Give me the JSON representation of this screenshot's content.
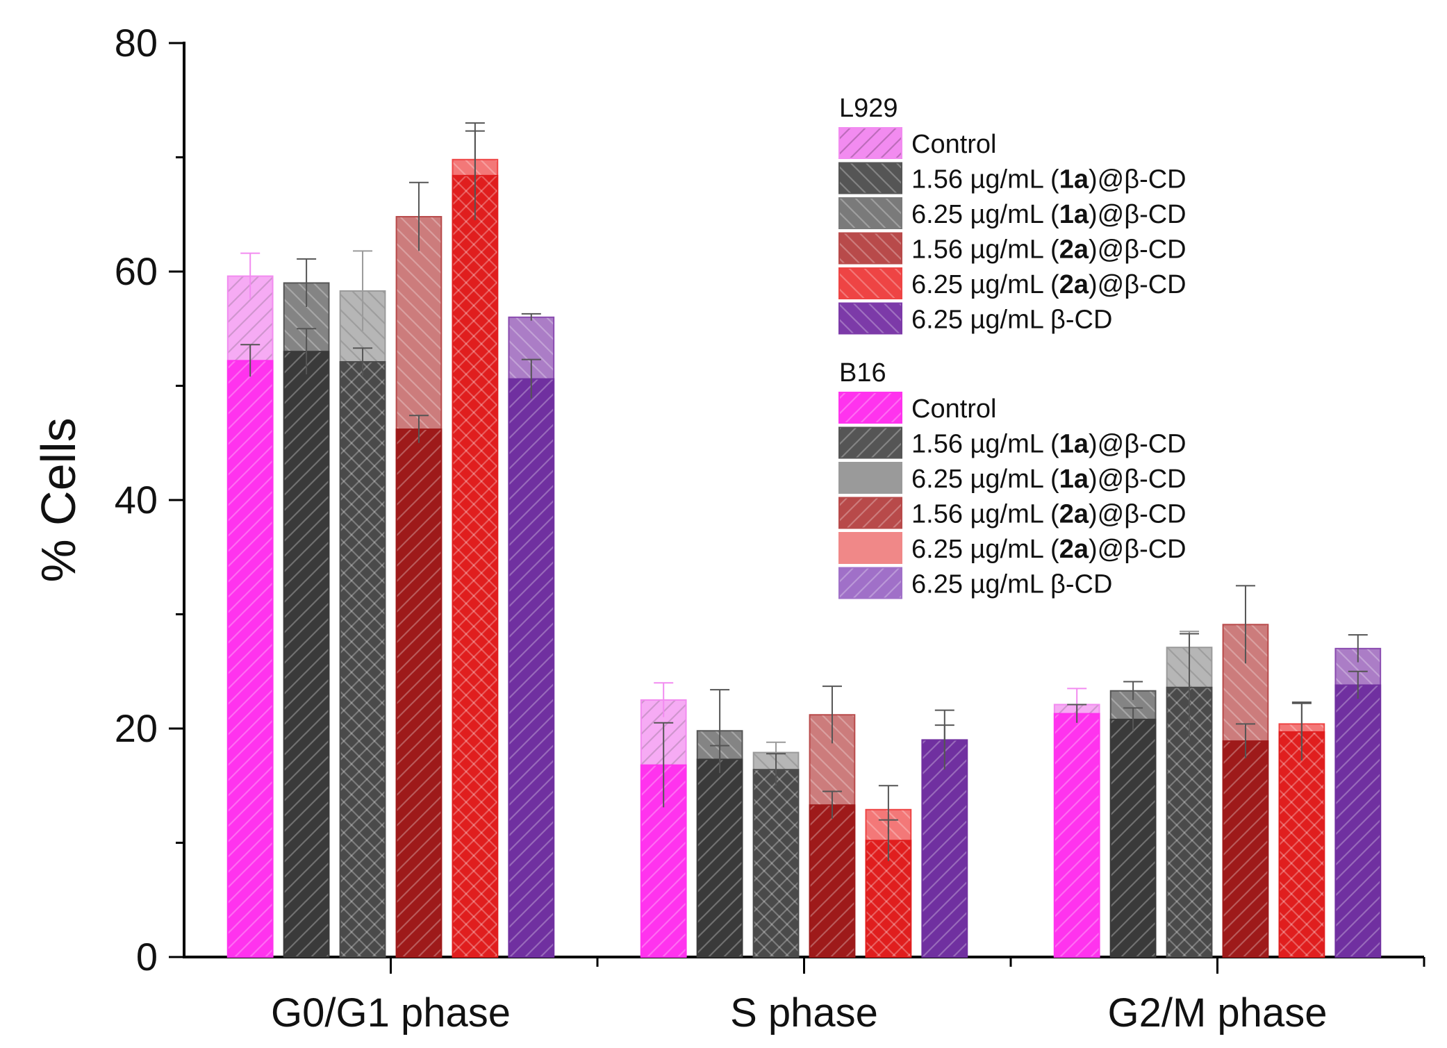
{
  "chart_data": {
    "type": "bar",
    "title": "",
    "xlabel": "",
    "ylabel": "% Cells",
    "ylim": [
      0,
      80
    ],
    "yticks": [
      0,
      20,
      40,
      60,
      80
    ],
    "grid": false,
    "legend_position": "top-right",
    "categories": [
      "G0/G1 phase",
      "S phase",
      "G2/M phase"
    ],
    "groups": [
      {
        "name": "L929",
        "series": [
          {
            "name": "Control",
            "values": [
              59.6,
              22.5,
              22.1
            ],
            "errors": [
              2.0,
              1.5,
              1.4
            ],
            "color": "#f28bf0",
            "hatch": "diag-left"
          },
          {
            "name": "1.56 µg/mL (1a)@β-CD",
            "values": [
              59.0,
              19.8,
              23.3
            ],
            "errors": [
              2.1,
              3.6,
              0.8
            ],
            "color": "#555555",
            "hatch": "diag-right"
          },
          {
            "name": "6.25 µg/mL (1a)@β-CD",
            "values": [
              58.3,
              17.9,
              27.1
            ],
            "errors": [
              3.5,
              0.9,
              1.4
            ],
            "color": "#9a9a9a",
            "hatch": "diag-right"
          },
          {
            "name": "1.56 µg/mL (2a)@β-CD",
            "values": [
              64.8,
              21.2,
              29.1
            ],
            "errors": [
              3.0,
              2.5,
              3.4
            ],
            "color": "#b84a4a",
            "hatch": "diag-right"
          },
          {
            "name": "6.25 µg/mL (2a)@β-CD",
            "values": [
              69.8,
              12.9,
              20.4
            ],
            "errors": [
              3.2,
              2.1,
              1.9
            ],
            "color": "#ee4444",
            "hatch": "diag-right"
          },
          {
            "name": "6.25 µg/mL β-CD",
            "values": [
              56.0,
              19.0,
              27.0
            ],
            "errors": [
              0.3,
              2.6,
              1.2
            ],
            "color": "#8a4bb0",
            "hatch": "diag-right"
          }
        ]
      },
      {
        "name": "B16",
        "series": [
          {
            "name": "Control",
            "values": [
              52.2,
              16.8,
              21.3
            ],
            "errors": [
              1.4,
              3.7,
              0.8
            ],
            "color": "#ff33ee",
            "hatch": "diag-left"
          },
          {
            "name": "1.56 µg/mL (1a)@β-CD",
            "values": [
              53.0,
              17.3,
              20.8
            ],
            "errors": [
              2.0,
              1.2,
              1.0
            ],
            "color": "#3a3a3a",
            "hatch": "diag-left"
          },
          {
            "name": "6.25 µg/mL (1a)@β-CD",
            "values": [
              52.1,
              16.4,
              23.6
            ],
            "errors": [
              1.2,
              1.4,
              4.7
            ],
            "color": "#4a4a4a",
            "hatch": "cross"
          },
          {
            "name": "1.56 µg/mL (2a)@β-CD",
            "values": [
              46.2,
              13.3,
              18.9
            ],
            "errors": [
              1.2,
              1.2,
              1.5
            ],
            "color": "#9e1a1a",
            "hatch": "diag-left"
          },
          {
            "name": "6.25 µg/mL (2a)@β-CD",
            "values": [
              68.4,
              10.2,
              19.7
            ],
            "errors": [
              3.9,
              1.8,
              2.5
            ],
            "color": "#e01e1e",
            "hatch": "cross"
          },
          {
            "name": "6.25 µg/mL β-CD",
            "values": [
              50.6,
              19.0,
              23.8
            ],
            "errors": [
              1.7,
              1.3,
              1.2
            ],
            "color": "#7030a0",
            "hatch": "diag-left"
          }
        ]
      }
    ],
    "legend": {
      "groups": [
        {
          "title": "L929",
          "entries": [
            {
              "parts": [
                {
                  "t": "Control",
                  "b": false
                }
              ]
            },
            {
              "parts": [
                {
                  "t": "1.56 µg/mL (",
                  "b": false
                },
                {
                  "t": "1a",
                  "b": true
                },
                {
                  "t": ")@β-CD",
                  "b": false
                }
              ]
            },
            {
              "parts": [
                {
                  "t": "6.25 µg/mL (",
                  "b": false
                },
                {
                  "t": "1a",
                  "b": true
                },
                {
                  "t": ")@β-CD",
                  "b": false
                }
              ]
            },
            {
              "parts": [
                {
                  "t": "1.56 µg/mL (",
                  "b": false
                },
                {
                  "t": "2a",
                  "b": true
                },
                {
                  "t": ")@β-CD",
                  "b": false
                }
              ]
            },
            {
              "parts": [
                {
                  "t": "6.25 µg/mL (",
                  "b": false
                },
                {
                  "t": "2a",
                  "b": true
                },
                {
                  "t": ")@β-CD",
                  "b": false
                }
              ]
            },
            {
              "parts": [
                {
                  "t": "6.25 µg/mL β-CD",
                  "b": false
                }
              ]
            }
          ],
          "swatches": [
            {
              "color": "#f28bf0",
              "hatch": "diag-left"
            },
            {
              "color": "#555555",
              "hatch": "diag-right"
            },
            {
              "color": "#7a7a7a",
              "hatch": "diag-right"
            },
            {
              "color": "#b84a4a",
              "hatch": "diag-right"
            },
            {
              "color": "#ee4444",
              "hatch": "diag-right"
            },
            {
              "color": "#7c3aa8",
              "hatch": "diag-right"
            }
          ]
        },
        {
          "title": "B16",
          "entries": [
            {
              "parts": [
                {
                  "t": "Control",
                  "b": false
                }
              ]
            },
            {
              "parts": [
                {
                  "t": "1.56 µg/mL (",
                  "b": false
                },
                {
                  "t": "1a",
                  "b": true
                },
                {
                  "t": ")@β-CD",
                  "b": false
                }
              ]
            },
            {
              "parts": [
                {
                  "t": "6.25 µg/mL (",
                  "b": false
                },
                {
                  "t": "1a",
                  "b": true
                },
                {
                  "t": ")@β-CD",
                  "b": false
                }
              ]
            },
            {
              "parts": [
                {
                  "t": "1.56 µg/mL (",
                  "b": false
                },
                {
                  "t": "2a",
                  "b": true
                },
                {
                  "t": ")@β-CD",
                  "b": false
                }
              ]
            },
            {
              "parts": [
                {
                  "t": "6.25 µg/mL (",
                  "b": false
                },
                {
                  "t": "2a",
                  "b": true
                },
                {
                  "t": ")@β-CD",
                  "b": false
                }
              ]
            },
            {
              "parts": [
                {
                  "t": "6.25 µg/mL β-CD",
                  "b": false
                }
              ]
            }
          ],
          "swatches": [
            {
              "color": "#ff33ee",
              "hatch": "diag-left"
            },
            {
              "color": "#555555",
              "hatch": "diag-left"
            },
            {
              "color": "#9a9a9a",
              "hatch": "none"
            },
            {
              "color": "#b84a4a",
              "hatch": "diag-left"
            },
            {
              "color": "#f08888",
              "hatch": "none"
            },
            {
              "color": "#a070c8",
              "hatch": "diag-left"
            }
          ]
        }
      ]
    }
  }
}
